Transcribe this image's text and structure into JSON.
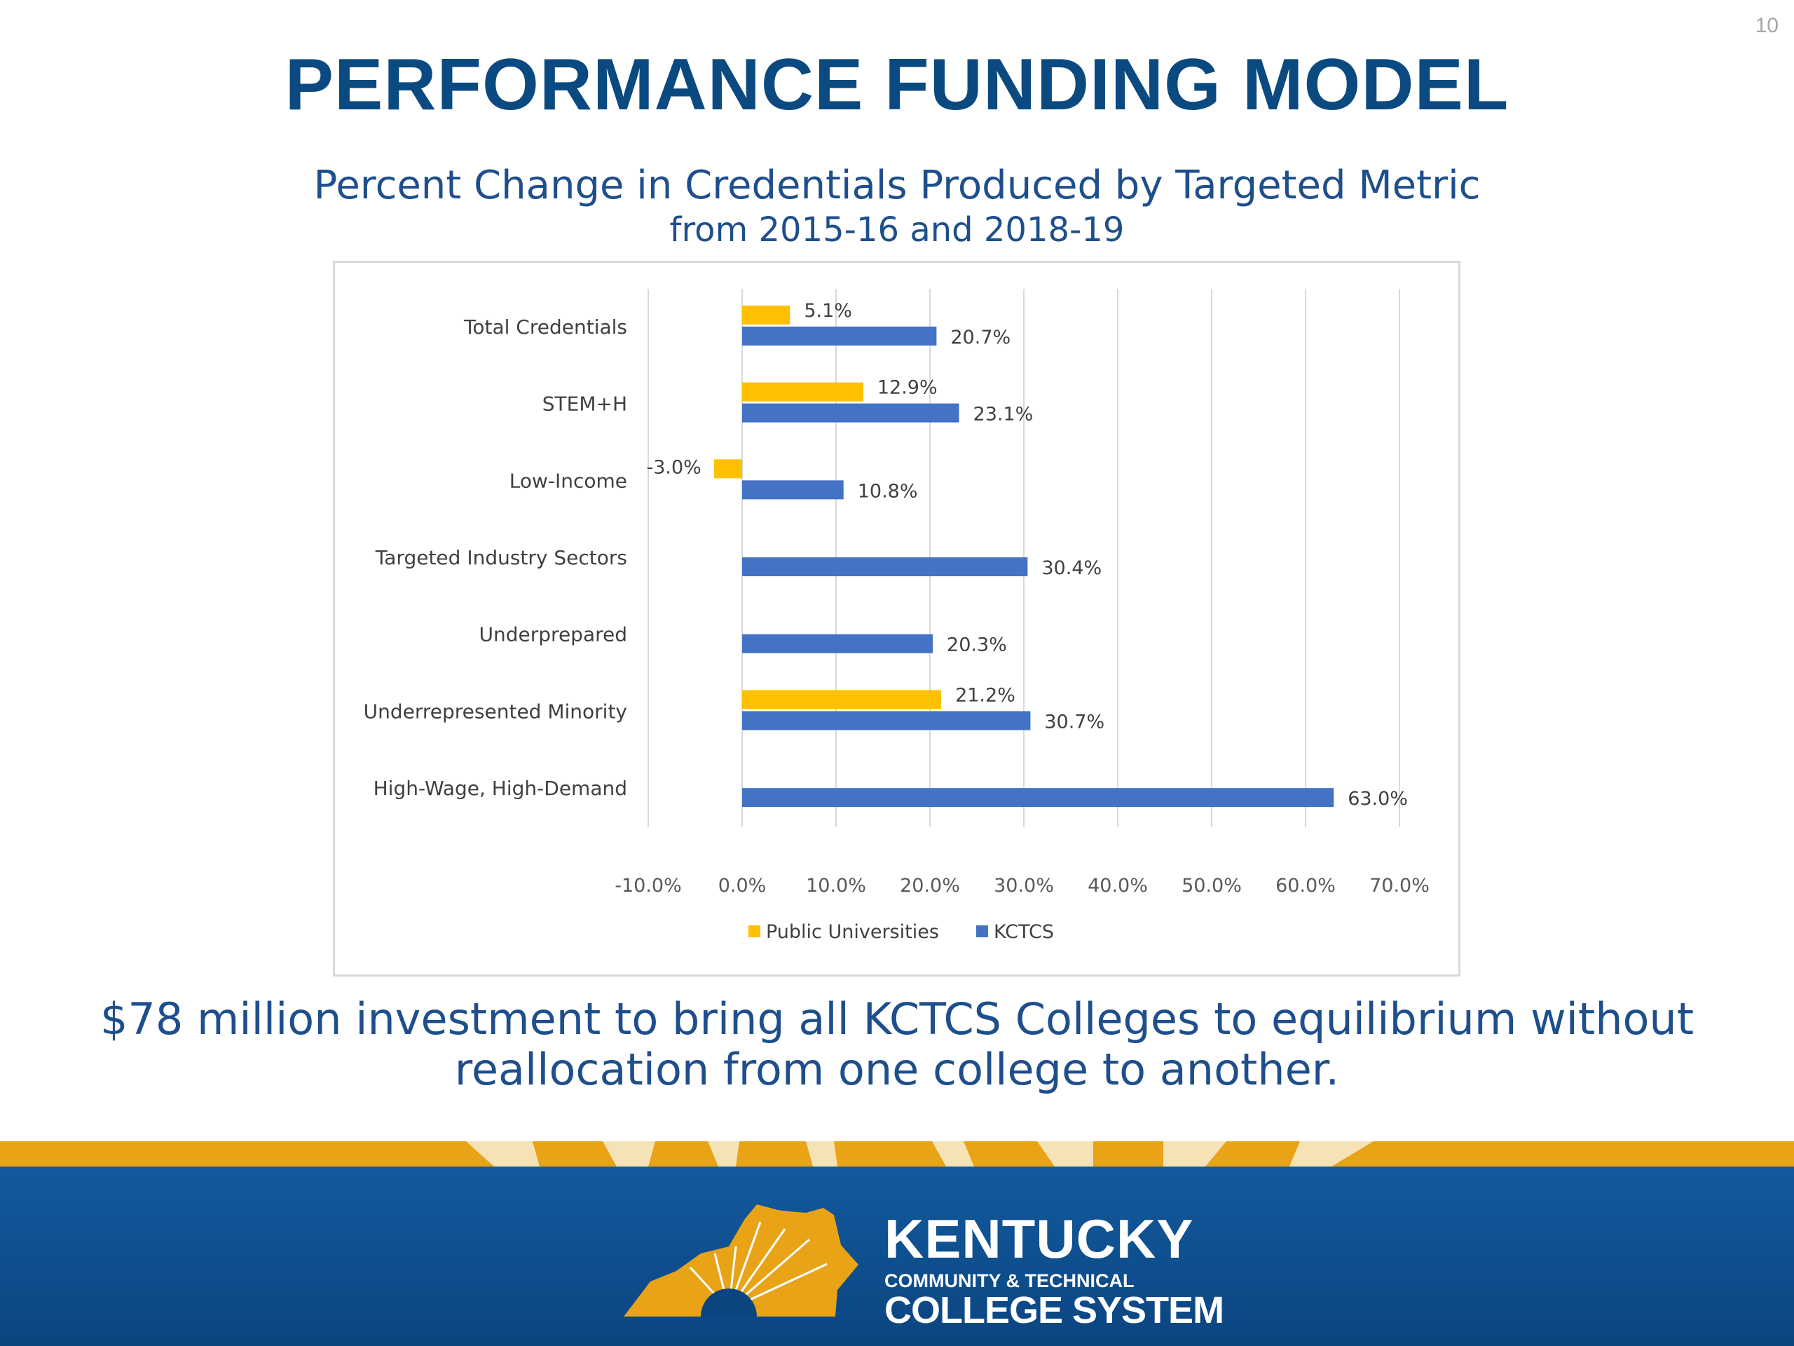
{
  "slide_number": "10",
  "title": "PERFORMANCE FUNDING MODEL",
  "subtitle": "Percent Change in Credentials Produced by Targeted Metric",
  "subtitle2": "from 2015-16 and 2018-19",
  "caption_line1": "$78 million investment to bring all KCTCS Colleges to equilibrium without",
  "caption_line2": "reallocation from one college to another.",
  "logo": {
    "line1": "KENTUCKY",
    "line2": "COMMUNITY & TECHNICAL",
    "line3": "COLLEGE SYSTEM"
  },
  "colors": {
    "title": "#0b4a80",
    "text": "#1e4f8c",
    "public_universities": "#ffc000",
    "kctcs": "#4472c4",
    "footer_blue": "#0d4f8f",
    "footer_gold": "#e8a317"
  },
  "chart_data": {
    "type": "bar",
    "orientation": "horizontal",
    "categories": [
      "Total Credentials",
      "STEM+H",
      "Low-Income",
      "Targeted Industry Sectors",
      "Underprepared",
      "Underrepresented Minority",
      "High-Wage, High-Demand"
    ],
    "series": [
      {
        "name": "Public Universities",
        "values": [
          5.1,
          12.9,
          -3.0,
          null,
          null,
          21.2,
          null
        ],
        "labels": [
          "5.1%",
          "12.9%",
          "-3.0%",
          "",
          "",
          "21.2%",
          ""
        ],
        "color": "#ffc000"
      },
      {
        "name": "KCTCS",
        "values": [
          20.7,
          23.1,
          10.8,
          30.4,
          20.3,
          30.7,
          63.0
        ],
        "labels": [
          "20.7%",
          "23.1%",
          "10.8%",
          "30.4%",
          "20.3%",
          "30.7%",
          "63.0%"
        ],
        "color": "#4472c4"
      }
    ],
    "xlim": [
      -10,
      70
    ],
    "ticks": [
      -10,
      0,
      10,
      20,
      30,
      40,
      50,
      60,
      70
    ],
    "tick_labels": [
      "-10.0%",
      "0.0%",
      "10.0%",
      "20.0%",
      "30.0%",
      "40.0%",
      "50.0%",
      "60.0%",
      "70.0%"
    ],
    "grid": true,
    "legend": "bottom"
  }
}
